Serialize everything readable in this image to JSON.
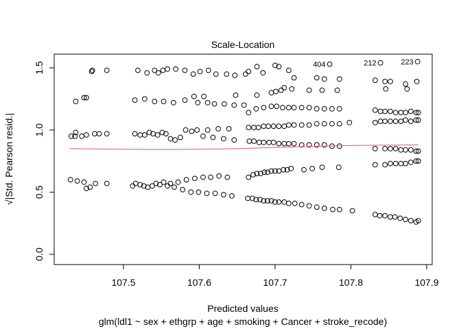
{
  "chart_data": {
    "type": "scatter",
    "title": "Scale-Location",
    "xlabel": "Predicted values",
    "subtitle": "glm(ldl1 ~ sex + ethgrp + age + smoking + Cancer + stroke_recode)",
    "ylabel": "√|Std. Pearson resid.|",
    "xlim": [
      107.42,
      107.895
    ],
    "ylim": [
      0.0,
      1.6
    ],
    "x_ticks": [
      "107.5",
      "107.6",
      "107.7",
      "107.8",
      "107.9"
    ],
    "y_ticks": [
      "0.0",
      "0.5",
      "1.0",
      "1.5"
    ],
    "grid": false,
    "points": [
      [
        107.43,
        0.6
      ],
      [
        107.439,
        0.59
      ],
      [
        107.448,
        0.58
      ],
      [
        107.451,
        0.53
      ],
      [
        107.456,
        0.54
      ],
      [
        107.463,
        0.57
      ],
      [
        107.478,
        0.57
      ],
      [
        107.431,
        0.95
      ],
      [
        107.436,
        0.95
      ],
      [
        107.437,
        0.98
      ],
      [
        107.445,
        0.95
      ],
      [
        107.451,
        0.96
      ],
      [
        107.462,
        0.97
      ],
      [
        107.468,
        0.97
      ],
      [
        107.478,
        0.97
      ],
      [
        107.437,
        1.23
      ],
      [
        107.448,
        1.26
      ],
      [
        107.451,
        1.26
      ],
      [
        107.458,
        1.47
      ],
      [
        107.459,
        1.48
      ],
      [
        107.478,
        1.48
      ],
      [
        107.512,
        0.55
      ],
      [
        107.516,
        0.57
      ],
      [
        107.522,
        0.56
      ],
      [
        107.527,
        0.55
      ],
      [
        107.532,
        0.54
      ],
      [
        107.538,
        0.55
      ],
      [
        107.543,
        0.57
      ],
      [
        107.548,
        0.56
      ],
      [
        107.553,
        0.58
      ],
      [
        107.558,
        0.55
      ],
      [
        107.562,
        0.57
      ],
      [
        107.567,
        0.54
      ],
      [
        107.572,
        0.58
      ],
      [
        107.578,
        0.52
      ],
      [
        107.583,
        0.6
      ],
      [
        107.589,
        0.5
      ],
      [
        107.594,
        0.61
      ],
      [
        107.599,
        0.5
      ],
      [
        107.605,
        0.62
      ],
      [
        107.61,
        0.49
      ],
      [
        107.615,
        0.62
      ],
      [
        107.621,
        0.49
      ],
      [
        107.626,
        0.63
      ],
      [
        107.632,
        0.48
      ],
      [
        107.637,
        0.62
      ],
      [
        107.643,
        0.47
      ],
      [
        107.515,
        0.97
      ],
      [
        107.522,
        0.96
      ],
      [
        107.528,
        0.96
      ],
      [
        107.534,
        0.98
      ],
      [
        107.539,
        0.97
      ],
      [
        107.545,
        0.96
      ],
      [
        107.551,
        0.98
      ],
      [
        107.556,
        0.97
      ],
      [
        107.562,
        0.93
      ],
      [
        107.568,
        0.92
      ],
      [
        107.575,
        0.94
      ],
      [
        107.582,
        1.0
      ],
      [
        107.59,
        0.99
      ],
      [
        107.597,
        1.0
      ],
      [
        107.605,
        0.95
      ],
      [
        107.611,
        1.0
      ],
      [
        107.618,
        0.94
      ],
      [
        107.625,
        1.01
      ],
      [
        107.632,
        0.93
      ],
      [
        107.639,
        1.01
      ],
      [
        107.646,
        0.92
      ],
      [
        107.515,
        1.24
      ],
      [
        107.528,
        1.25
      ],
      [
        107.541,
        1.23
      ],
      [
        107.553,
        1.23
      ],
      [
        107.566,
        1.22
      ],
      [
        107.581,
        1.24
      ],
      [
        107.593,
        1.27
      ],
      [
        107.598,
        1.22
      ],
      [
        107.606,
        1.27
      ],
      [
        107.611,
        1.22
      ],
      [
        107.62,
        1.21
      ],
      [
        107.633,
        1.21
      ],
      [
        107.646,
        1.2
      ],
      [
        107.648,
        1.28
      ],
      [
        107.659,
        1.2
      ],
      [
        107.519,
        1.48
      ],
      [
        107.531,
        1.46
      ],
      [
        107.541,
        1.48
      ],
      [
        107.546,
        1.46
      ],
      [
        107.552,
        1.48
      ],
      [
        107.558,
        1.49
      ],
      [
        107.569,
        1.49
      ],
      [
        107.581,
        1.48
      ],
      [
        107.592,
        1.45
      ],
      [
        107.601,
        1.47
      ],
      [
        107.612,
        1.48
      ],
      [
        107.622,
        1.45
      ],
      [
        107.636,
        1.45
      ],
      [
        107.647,
        1.44
      ],
      [
        107.661,
        1.45
      ],
      [
        107.665,
        0.62
      ],
      [
        107.671,
        0.64
      ],
      [
        107.676,
        0.65
      ],
      [
        107.681,
        0.65
      ],
      [
        107.686,
        0.66
      ],
      [
        107.69,
        0.66
      ],
      [
        107.695,
        0.67
      ],
      [
        107.7,
        0.67
      ],
      [
        107.705,
        0.67
      ],
      [
        107.711,
        0.68
      ],
      [
        107.716,
        0.68
      ],
      [
        107.721,
        0.69
      ],
      [
        107.738,
        0.68
      ],
      [
        107.749,
        0.69
      ],
      [
        107.762,
        0.7
      ],
      [
        107.784,
        0.7
      ],
      [
        107.664,
        0.45
      ],
      [
        107.67,
        0.45
      ],
      [
        107.675,
        0.44
      ],
      [
        107.68,
        0.44
      ],
      [
        107.685,
        0.43
      ],
      [
        107.69,
        0.43
      ],
      [
        107.695,
        0.43
      ],
      [
        107.7,
        0.42
      ],
      [
        107.705,
        0.42
      ],
      [
        107.712,
        0.42
      ],
      [
        107.718,
        0.41
      ],
      [
        107.726,
        0.41
      ],
      [
        107.735,
        0.4
      ],
      [
        107.745,
        0.39
      ],
      [
        107.755,
        0.38
      ],
      [
        107.765,
        0.37
      ],
      [
        107.776,
        0.36
      ],
      [
        107.785,
        0.36
      ],
      [
        107.802,
        0.35
      ],
      [
        107.665,
        1.02
      ],
      [
        107.672,
        1.02
      ],
      [
        107.678,
        1.02
      ],
      [
        107.685,
        1.03
      ],
      [
        107.691,
        1.03
      ],
      [
        107.698,
        1.03
      ],
      [
        107.705,
        1.03
      ],
      [
        107.712,
        1.03
      ],
      [
        107.718,
        1.04
      ],
      [
        107.725,
        1.04
      ],
      [
        107.735,
        1.04
      ],
      [
        107.745,
        1.04
      ],
      [
        107.755,
        1.05
      ],
      [
        107.765,
        1.05
      ],
      [
        107.775,
        1.05
      ],
      [
        107.785,
        1.05
      ],
      [
        107.798,
        1.06
      ],
      [
        107.666,
        0.91
      ],
      [
        107.672,
        0.91
      ],
      [
        107.679,
        0.9
      ],
      [
        107.685,
        0.9
      ],
      [
        107.692,
        0.9
      ],
      [
        107.698,
        0.9
      ],
      [
        107.705,
        0.89
      ],
      [
        107.712,
        0.89
      ],
      [
        107.718,
        0.89
      ],
      [
        107.725,
        0.89
      ],
      [
        107.735,
        0.88
      ],
      [
        107.745,
        0.88
      ],
      [
        107.755,
        0.88
      ],
      [
        107.765,
        0.88
      ],
      [
        107.775,
        0.87
      ],
      [
        107.785,
        0.87
      ],
      [
        107.665,
        1.14
      ],
      [
        107.675,
        1.17
      ],
      [
        107.685,
        1.18
      ],
      [
        107.695,
        1.19
      ],
      [
        107.702,
        1.19
      ],
      [
        107.71,
        1.18
      ],
      [
        107.718,
        1.18
      ],
      [
        107.725,
        1.18
      ],
      [
        107.735,
        1.18
      ],
      [
        107.745,
        1.18
      ],
      [
        107.755,
        1.17
      ],
      [
        107.765,
        1.17
      ],
      [
        107.775,
        1.17
      ],
      [
        107.785,
        1.17
      ],
      [
        107.676,
        1.28
      ],
      [
        107.695,
        1.3
      ],
      [
        107.701,
        1.31
      ],
      [
        107.708,
        1.32
      ],
      [
        107.712,
        1.34
      ],
      [
        107.722,
        1.33
      ],
      [
        107.745,
        1.32
      ],
      [
        107.762,
        1.32
      ],
      [
        107.782,
        1.32
      ],
      [
        107.665,
        1.47
      ],
      [
        107.676,
        1.51
      ],
      [
        107.684,
        1.46
      ],
      [
        107.7,
        1.52
      ],
      [
        107.705,
        1.51
      ],
      [
        107.718,
        1.48
      ],
      [
        107.725,
        1.42
      ],
      [
        107.755,
        1.42
      ],
      [
        107.765,
        1.41
      ],
      [
        107.785,
        1.41
      ],
      [
        107.772,
        1.53
      ],
      [
        107.839,
        1.54
      ],
      [
        107.888,
        1.55
      ],
      [
        107.832,
        0.32
      ],
      [
        107.838,
        0.31
      ],
      [
        107.845,
        0.31
      ],
      [
        107.852,
        0.3
      ],
      [
        107.858,
        0.3
      ],
      [
        107.865,
        0.29
      ],
      [
        107.872,
        0.28
      ],
      [
        107.879,
        0.27
      ],
      [
        107.886,
        0.26
      ],
      [
        107.889,
        0.27
      ],
      [
        107.832,
        0.72
      ],
      [
        107.845,
        0.72
      ],
      [
        107.852,
        0.73
      ],
      [
        107.859,
        0.73
      ],
      [
        107.866,
        0.73
      ],
      [
        107.872,
        0.73
      ],
      [
        107.879,
        0.74
      ],
      [
        107.886,
        0.75
      ],
      [
        107.889,
        0.75
      ],
      [
        107.832,
        0.85
      ],
      [
        107.845,
        0.85
      ],
      [
        107.852,
        0.85
      ],
      [
        107.859,
        0.85
      ],
      [
        107.866,
        0.84
      ],
      [
        107.872,
        0.84
      ],
      [
        107.879,
        0.84
      ],
      [
        107.886,
        0.83
      ],
      [
        107.889,
        0.83
      ],
      [
        107.832,
        1.06
      ],
      [
        107.839,
        1.07
      ],
      [
        107.845,
        1.07
      ],
      [
        107.852,
        1.07
      ],
      [
        107.859,
        1.07
      ],
      [
        107.866,
        1.07
      ],
      [
        107.872,
        1.08
      ],
      [
        107.879,
        1.07
      ],
      [
        107.886,
        1.08
      ],
      [
        107.889,
        1.08
      ],
      [
        107.832,
        1.16
      ],
      [
        107.839,
        1.15
      ],
      [
        107.845,
        1.15
      ],
      [
        107.852,
        1.15
      ],
      [
        107.859,
        1.14
      ],
      [
        107.866,
        1.14
      ],
      [
        107.872,
        1.14
      ],
      [
        107.879,
        1.15
      ],
      [
        107.886,
        1.14
      ],
      [
        107.889,
        1.14
      ],
      [
        107.832,
        1.4
      ],
      [
        107.845,
        1.39
      ],
      [
        107.846,
        1.33
      ],
      [
        107.852,
        1.39
      ],
      [
        107.872,
        1.37
      ],
      [
        107.874,
        1.33
      ],
      [
        107.887,
        1.39
      ]
    ],
    "smoother": [
      [
        107.43,
        0.85
      ],
      [
        107.5,
        0.845
      ],
      [
        107.55,
        0.843
      ],
      [
        107.6,
        0.845
      ],
      [
        107.65,
        0.85
      ],
      [
        107.7,
        0.86
      ],
      [
        107.75,
        0.868
      ],
      [
        107.8,
        0.875
      ],
      [
        107.85,
        0.878
      ],
      [
        107.889,
        0.88
      ]
    ],
    "annotations": [
      {
        "label": "404",
        "x": 107.772,
        "y": 1.53
      },
      {
        "label": "212",
        "x": 107.839,
        "y": 1.54
      },
      {
        "label": "223",
        "x": 107.888,
        "y": 1.55
      }
    ],
    "colors": {
      "points": "#000000",
      "smoother": "#df536b"
    }
  }
}
